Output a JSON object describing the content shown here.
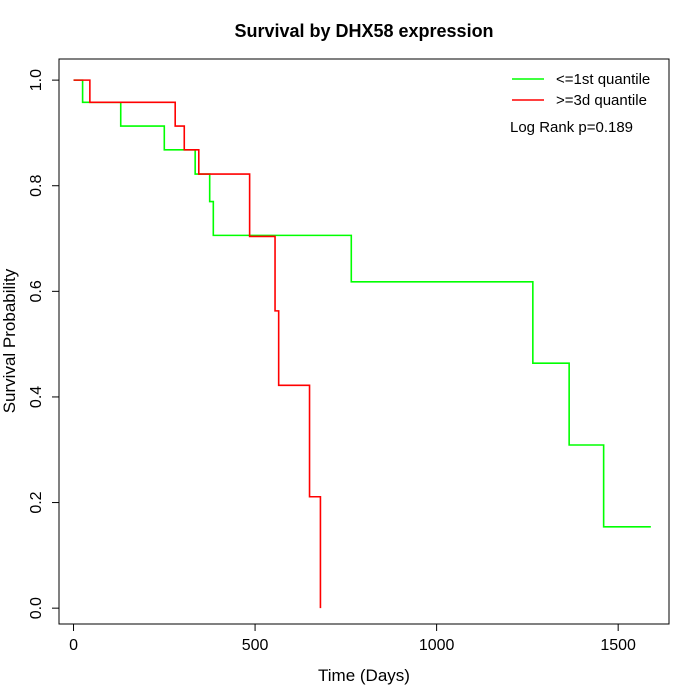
{
  "chart_data": {
    "type": "line",
    "title": "Survival by DHX58 expression",
    "xlabel": "Time (Days)",
    "ylabel": "Survival Probability",
    "xlim": [
      -40,
      1640
    ],
    "ylim": [
      -0.03,
      1.04
    ],
    "xticks": [
      0,
      500,
      1000,
      1500
    ],
    "xtick_labels": [
      "0",
      "500",
      "1000",
      "1500"
    ],
    "yticks": [
      0.0,
      0.2,
      0.4,
      0.6,
      0.8,
      1.0
    ],
    "ytick_labels": [
      "0.0",
      "0.2",
      "0.4",
      "0.6",
      "0.8",
      "1.0"
    ],
    "grid": false,
    "legend_position": "top-right",
    "annotation": "Log Rank p=0.189",
    "series": [
      {
        "name": "<=1st quantile",
        "color": "#00ff00",
        "step": true,
        "x": [
          0,
          25,
          130,
          250,
          335,
          375,
          385,
          765,
          1265,
          1365,
          1460,
          1590
        ],
        "y": [
          1.0,
          0.958,
          0.913,
          0.868,
          0.822,
          0.77,
          0.706,
          0.618,
          0.464,
          0.309,
          0.154,
          0.154
        ]
      },
      {
        "name": ">=3d quantile",
        "color": "#ff0000",
        "step": true,
        "x": [
          0,
          45,
          280,
          305,
          345,
          485,
          555,
          565,
          650,
          680
        ],
        "y": [
          1.0,
          0.958,
          0.913,
          0.868,
          0.822,
          0.704,
          0.563,
          0.422,
          0.211,
          0.0
        ]
      }
    ]
  }
}
